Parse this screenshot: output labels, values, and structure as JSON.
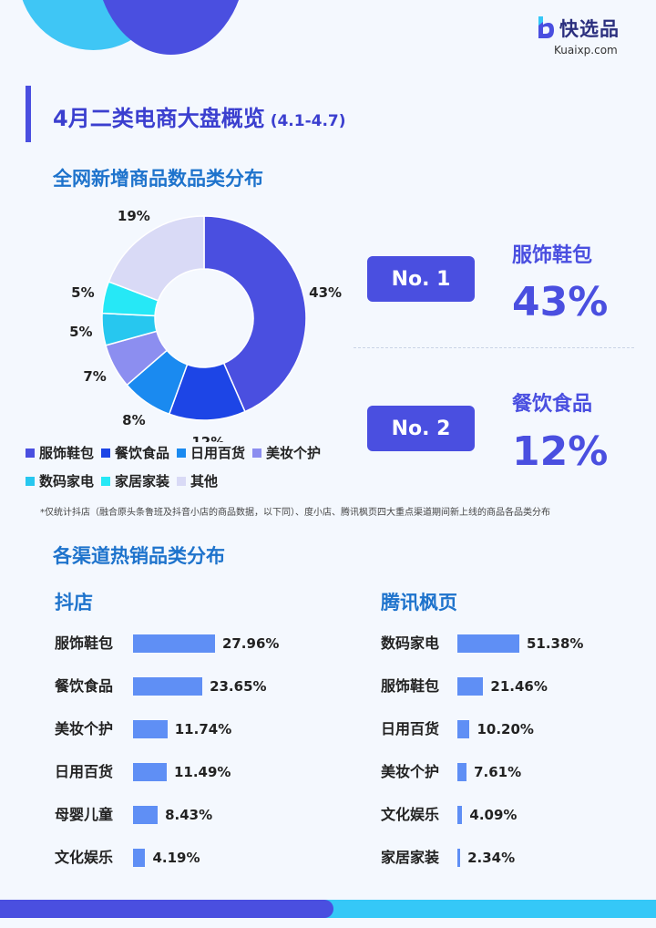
{
  "brand": {
    "name": "快选品",
    "site": "Kuaixp.com",
    "colors": {
      "primary": "#4a4fe0",
      "accent": "#35c8f7",
      "heading": "#1e73cc"
    }
  },
  "header": {
    "title": "4月二类电商大盘概览",
    "date_range": "(4.1-4.7)"
  },
  "section1": {
    "title": "全网新增商品数品类分布"
  },
  "section2": {
    "title": "各渠道热销品类分布"
  },
  "footnote": "*仅统计抖店（融合原头条鲁班及抖音小店的商品数据，以下同）、度小店、腾讯枫页四大重点渠道期间新上线的商品各品类分布",
  "ranks": [
    {
      "label": "No. 1",
      "category": "服饰鞋包",
      "value": "43%"
    },
    {
      "label": "No. 2",
      "category": "餐饮食品",
      "value": "12%"
    }
  ],
  "chart_data": [
    {
      "type": "pie",
      "title": "全网新增商品数品类分布",
      "categories": [
        "服饰鞋包",
        "餐饮食品",
        "日用百货",
        "美妆个护",
        "数码家电",
        "家居家装",
        "其他"
      ],
      "values": [
        43,
        12,
        8,
        7,
        5,
        5,
        19
      ],
      "value_labels": [
        "43%",
        "12%",
        "8%",
        "7%",
        "5%",
        "5%",
        "19%"
      ],
      "colors": [
        "#4a4fe0",
        "#1d45e6",
        "#1a8af0",
        "#8c8ef0",
        "#27c7ef",
        "#26e8f6",
        "#d9daf6"
      ],
      "donut": true,
      "legend_position": "bottom"
    },
    {
      "type": "bar",
      "title": "抖店",
      "orientation": "horizontal",
      "categories": [
        "服饰鞋包",
        "餐饮食品",
        "美妆个护",
        "日用百货",
        "母婴儿童",
        "文化娱乐"
      ],
      "values": [
        27.96,
        23.65,
        11.74,
        11.49,
        8.43,
        4.19
      ],
      "value_labels": [
        "27.96%",
        "23.65%",
        "11.74%",
        "11.49%",
        "8.43%",
        "4.19%"
      ],
      "color": "#5f8ff5"
    },
    {
      "type": "bar",
      "title": "腾讯枫页",
      "orientation": "horizontal",
      "categories": [
        "数码家电",
        "服饰鞋包",
        "日用百货",
        "美妆个护",
        "文化娱乐",
        "家居家装"
      ],
      "values": [
        51.38,
        21.46,
        10.2,
        7.61,
        4.09,
        2.34
      ],
      "value_labels": [
        "51.38%",
        "21.46%",
        "10.20%",
        "7.61%",
        "4.09%",
        "2.34%"
      ],
      "color": "#5f8ff5"
    }
  ]
}
